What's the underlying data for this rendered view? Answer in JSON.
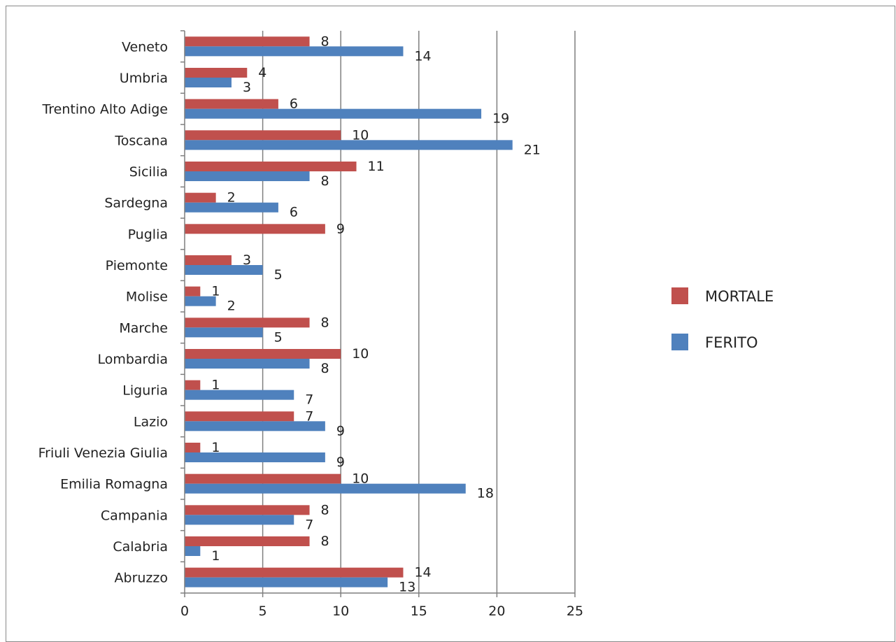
{
  "chart_data": {
    "type": "bar",
    "orientation": "horizontal",
    "categories": [
      "Veneto",
      "Umbria",
      "Trentino Alto Adige",
      "Toscana",
      "Sicilia",
      "Sardegna",
      "Puglia",
      "Piemonte",
      "Molise",
      "Marche",
      "Lombardia",
      "Liguria",
      "Lazio",
      "Friuli Venezia Giulia",
      "Emilia Romagna",
      "Campania",
      "Calabria",
      "Abruzzo"
    ],
    "series": [
      {
        "name": "MORTALE",
        "color": "#c0504d",
        "values": [
          8,
          4,
          6,
          10,
          11,
          2,
          9,
          3,
          1,
          8,
          10,
          1,
          7,
          1,
          10,
          8,
          8,
          14
        ]
      },
      {
        "name": "FERITO",
        "color": "#4f81bd",
        "values": [
          14,
          3,
          19,
          21,
          8,
          6,
          null,
          5,
          2,
          5,
          8,
          7,
          9,
          9,
          18,
          7,
          1,
          13
        ]
      }
    ],
    "xlim": [
      0,
      25
    ],
    "xticks": [
      "0",
      "5",
      "10",
      "15",
      "20",
      "25"
    ],
    "grid": true,
    "legend": "right",
    "data_labels": true,
    "title": "",
    "xlabel": "",
    "ylabel": ""
  }
}
